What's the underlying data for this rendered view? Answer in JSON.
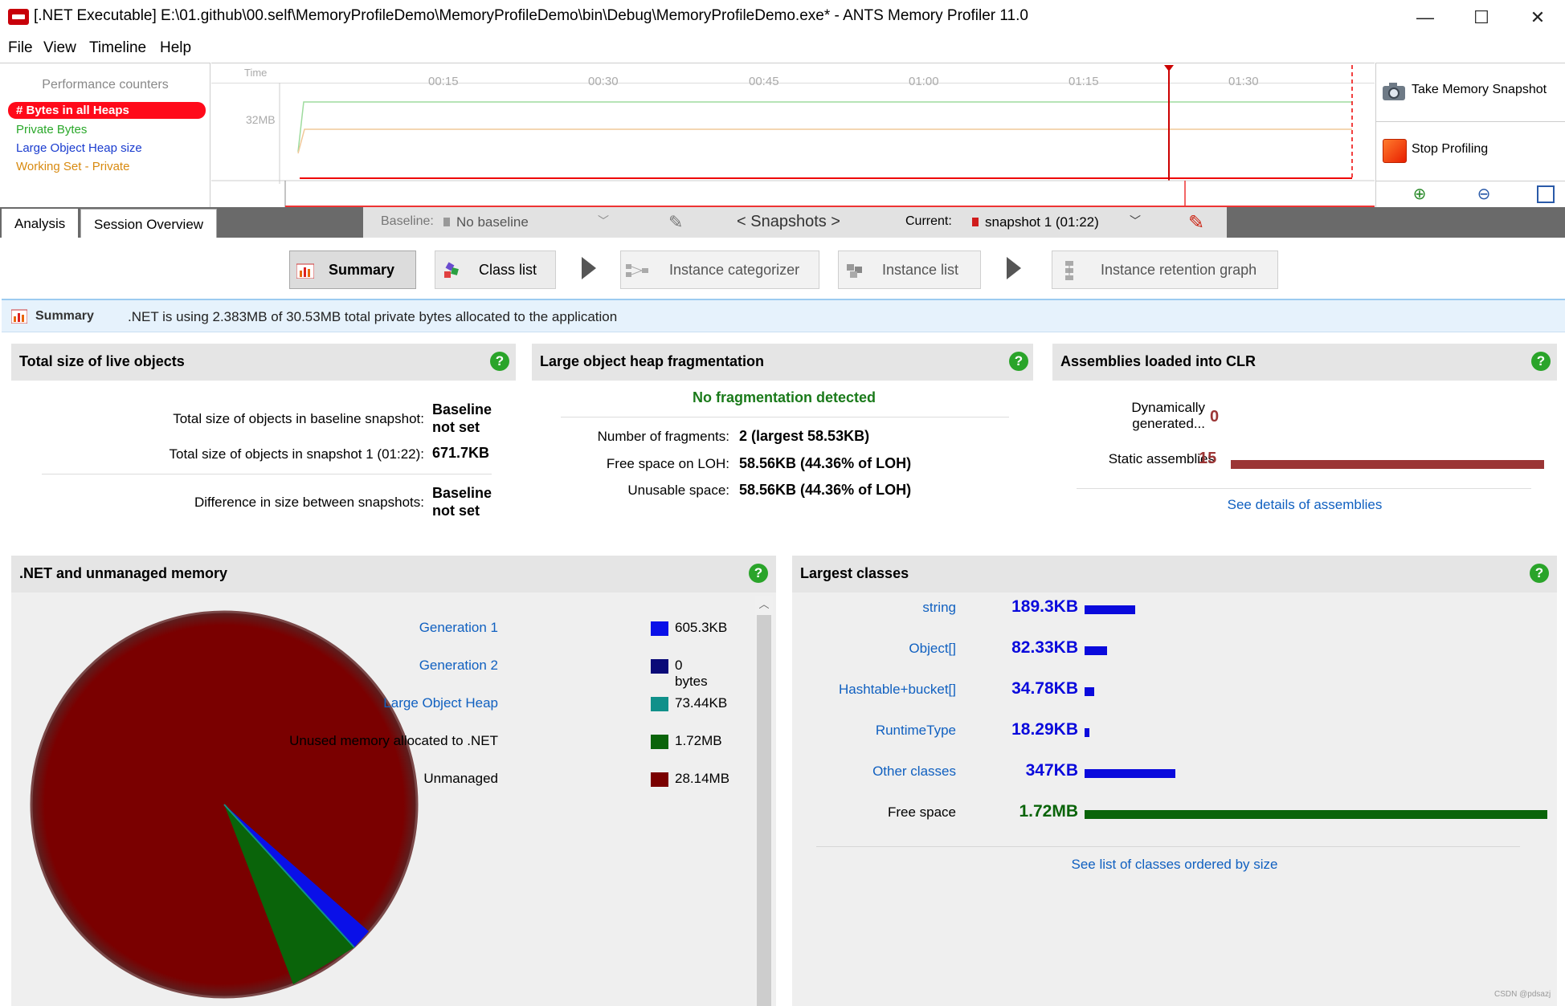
{
  "window": {
    "title": "[.NET Executable] E:\\01.github\\00.self\\MemoryProfileDemo\\MemoryProfileDemo\\bin\\Debug\\MemoryProfileDemo.exe* - ANTS Memory Profiler 11.0",
    "minimize": "—",
    "maximize": "☐",
    "close": "✕"
  },
  "menu": [
    "File",
    "View",
    "Timeline",
    "Help"
  ],
  "perf": {
    "header": "Performance counters",
    "counters": [
      {
        "label": "# Bytes in all Heaps",
        "color": "#ffffff"
      },
      {
        "label": "Private Bytes",
        "color": "#2aa82a"
      },
      {
        "label": "Large Object Heap size",
        "color": "#1a3ccf"
      },
      {
        "label": "Working Set - Private",
        "color": "#d88a10"
      }
    ]
  },
  "timeline": {
    "time_label": "Time",
    "ticks": [
      "00:15",
      "00:30",
      "00:45",
      "01:00",
      "01:15",
      "01:30"
    ],
    "ylabel": "32MB"
  },
  "actions": {
    "snapshot": "Take Memory Snapshot",
    "stop": "Stop Profiling"
  },
  "tabs": {
    "analysis": "Analysis",
    "session": "Session Overview"
  },
  "snapbar": {
    "baseline_label": "Baseline:",
    "baseline_value": "No baseline",
    "snapshots": "< Snapshots >",
    "current_label": "Current:",
    "current_value": "snapshot 1 (01:22)"
  },
  "nav": {
    "summary": "Summary",
    "classlist": "Class list",
    "categorizer": "Instance categorizer",
    "instancelist": "Instance list",
    "retention": "Instance retention graph"
  },
  "summary_bar": {
    "title": "Summary",
    "text": ".NET is using 2.383MB of 30.53MB total private bytes allocated to the application"
  },
  "live": {
    "title": "Total size of live objects",
    "baseline_label": "Total size of objects in baseline snapshot:",
    "baseline_value": "Baseline not set",
    "snapshot_label": "Total size of objects in snapshot 1 (01:22):",
    "snapshot_value": "671.7KB",
    "diff_label": "Difference in size between snapshots:",
    "diff_value": "Baseline not set"
  },
  "loh": {
    "title": "Large object heap fragmentation",
    "status": "No fragmentation detected",
    "fragments_label": "Number of fragments:",
    "fragments_value": "2 (largest 58.53KB)",
    "free_label": "Free space on LOH:",
    "free_value": "58.56KB (44.36% of LOH)",
    "unusable_label": "Unusable space:",
    "unusable_value": "58.56KB (44.36% of LOH)"
  },
  "assemblies": {
    "title": "Assemblies loaded into CLR",
    "dynamic_label": "Dynamically generated...",
    "dynamic_value": "0",
    "static_label": "Static assemblies",
    "static_value": "15",
    "link": "See details of assemblies",
    "color": "#9b3535"
  },
  "memory": {
    "title": ".NET and unmanaged memory",
    "legend": [
      {
        "label": "Generation 1",
        "value": "605.3KB",
        "color": "#0a10e8",
        "link": true
      },
      {
        "label": "Generation 2",
        "value": "0 bytes",
        "color": "#0a0a78",
        "link": true
      },
      {
        "label": "Large Object Heap",
        "value": "73.44KB",
        "color": "#10908a",
        "link": true
      },
      {
        "label": "Unused memory allocated to .NET",
        "value": "1.72MB",
        "color": "#0a640a",
        "link": false
      },
      {
        "label": "Unmanaged",
        "value": "28.14MB",
        "color": "#7a0000",
        "link": false
      }
    ]
  },
  "largest": {
    "title": "Largest classes",
    "rows": [
      {
        "name": "string",
        "value": "189.3KB",
        "frac": 0.11,
        "color": "#0a0adc",
        "link": true
      },
      {
        "name": "Object[]",
        "value": "82.33KB",
        "frac": 0.048,
        "color": "#0a0adc",
        "link": true
      },
      {
        "name": "Hashtable+bucket[]",
        "value": "34.78KB",
        "frac": 0.02,
        "color": "#0a0adc",
        "link": true
      },
      {
        "name": "RuntimeType",
        "value": "18.29KB",
        "frac": 0.011,
        "color": "#0a0adc",
        "link": true
      },
      {
        "name": "Other classes",
        "value": "347KB",
        "frac": 0.197,
        "color": "#0a0adc",
        "link": true
      },
      {
        "name": "Free space",
        "value": "1.72MB",
        "frac": 1.0,
        "color": "#0a640a",
        "link": false
      }
    ],
    "link": "See list of classes ordered by size"
  },
  "watermark": "CSDN @pdsazj"
}
